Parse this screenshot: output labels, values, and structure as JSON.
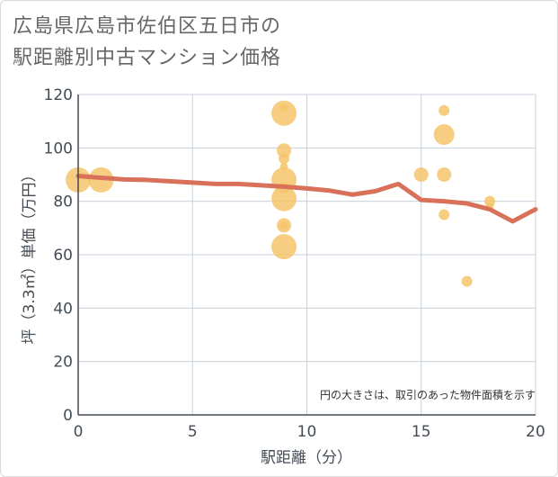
{
  "title_line1": "広島県広島市佐伯区五日市の",
  "title_line2": "駅距離別中古マンション価格",
  "chart_data": {
    "type": "scatter",
    "xlabel": "駅距離（分）",
    "ylabel": "坪（3.3㎡）単価（万円）",
    "xlim": [
      0,
      20
    ],
    "ylim": [
      0,
      120
    ],
    "xticks": [
      0,
      5,
      10,
      15,
      20
    ],
    "yticks": [
      0,
      20,
      40,
      60,
      80,
      100,
      120
    ],
    "grid": true,
    "note": "円の大きさは、取引のあった物件面積を示す",
    "colors": {
      "bubble": "#f5c46b",
      "line": "#d9705a",
      "grid": "#c8d2dc",
      "axis": "#444c55"
    },
    "bubbles": [
      {
        "x": 0,
        "y": 88,
        "size": 5
      },
      {
        "x": 1,
        "y": 88,
        "size": 5
      },
      {
        "x": 9,
        "y": 113,
        "size": 5
      },
      {
        "x": 9,
        "y": 115,
        "size": 1
      },
      {
        "x": 9,
        "y": 99,
        "size": 3
      },
      {
        "x": 9,
        "y": 96,
        "size": 2
      },
      {
        "x": 9,
        "y": 93,
        "size": 1
      },
      {
        "x": 9,
        "y": 88,
        "size": 5
      },
      {
        "x": 9,
        "y": 85,
        "size": 2
      },
      {
        "x": 9,
        "y": 81,
        "size": 5
      },
      {
        "x": 9,
        "y": 71,
        "size": 3
      },
      {
        "x": 9,
        "y": 71,
        "size": 1
      },
      {
        "x": 9,
        "y": 63,
        "size": 5
      },
      {
        "x": 15,
        "y": 90,
        "size": 3
      },
      {
        "x": 16,
        "y": 114,
        "size": 2
      },
      {
        "x": 16,
        "y": 105,
        "size": 4
      },
      {
        "x": 16,
        "y": 90,
        "size": 3
      },
      {
        "x": 16,
        "y": 75,
        "size": 2
      },
      {
        "x": 17,
        "y": 50,
        "size": 2
      },
      {
        "x": 18,
        "y": 80,
        "size": 2
      },
      {
        "x": 18,
        "y": 78,
        "size": 1
      }
    ],
    "trend": {
      "x": [
        0,
        1,
        2,
        3,
        4,
        5,
        6,
        7,
        8,
        9,
        10,
        11,
        12,
        13,
        14,
        15,
        16,
        17,
        18,
        19,
        20
      ],
      "y": [
        89.5,
        88.8,
        88.2,
        88.0,
        87.5,
        87.0,
        86.5,
        86.5,
        86.0,
        85.5,
        84.8,
        84.0,
        82.5,
        83.8,
        86.5,
        80.5,
        80.0,
        79.2,
        77.0,
        72.5,
        77.0
      ]
    }
  }
}
